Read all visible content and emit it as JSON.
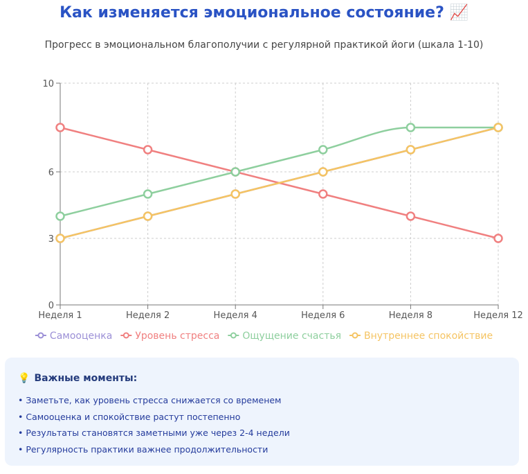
{
  "header": {
    "title": "Как изменяется эмоциональное состояние? 📈",
    "subtitle": "Прогресс в эмоциональном благополучии с регулярной практикой йоги (шкала 1-10)"
  },
  "chart_data": {
    "type": "line",
    "categories": [
      "Неделя 1",
      "Неделя 2",
      "Неделя 4",
      "Неделя 6",
      "Неделя 8",
      "Неделя 12"
    ],
    "ylim": [
      0,
      10
    ],
    "yticks": [
      0,
      3,
      6,
      10
    ],
    "grid": true,
    "legend_position": "bottom",
    "series": [
      {
        "name": "Самооценка",
        "color": "#9b8fd6",
        "values": [
          3,
          4,
          5,
          6,
          7,
          8
        ]
      },
      {
        "name": "Уровень стресса",
        "color": "#f08080",
        "values": [
          8,
          7,
          6,
          5,
          4,
          3
        ]
      },
      {
        "name": "Ощущение счастья",
        "color": "#8ecf9e",
        "values": [
          4,
          5,
          6,
          7,
          8,
          8
        ]
      },
      {
        "name": "Внутреннее спокойствие",
        "color": "#f5c463",
        "values": [
          3,
          4,
          5,
          6,
          7,
          8
        ]
      }
    ]
  },
  "notes": {
    "icon": "lightbulb-icon",
    "title": "Важные моменты:",
    "items": [
      "Заметьте, как уровень стресса снижается со временем",
      "Самооценка и спокойствие растут постепенно",
      "Результаты становятся заметными уже через 2-4 недели",
      "Регулярность практики важнее продолжительности"
    ]
  }
}
